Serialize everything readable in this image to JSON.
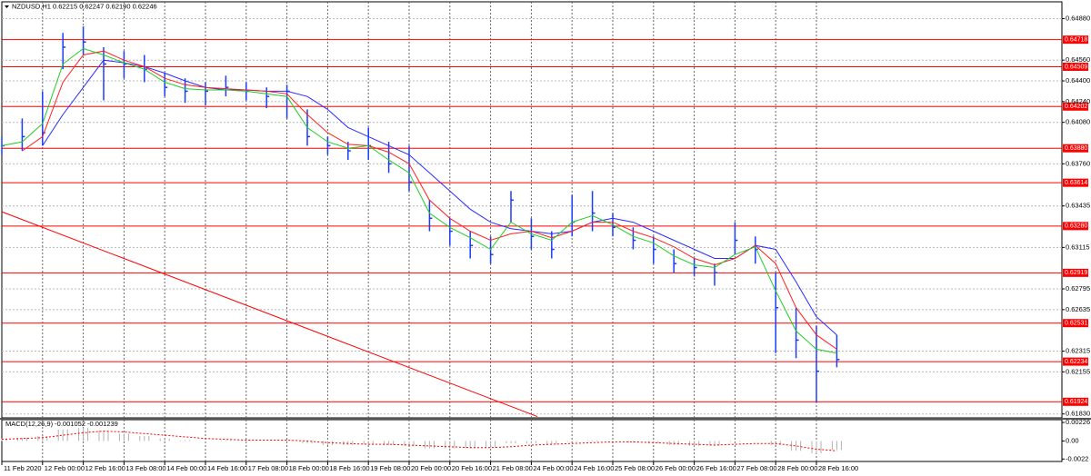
{
  "chart_data": [
    {
      "type": "ohlc",
      "title": "NZDUSD,H1  0.62215 0.62247 0.62190 0.62246",
      "categories": [
        "11 Feb 2020",
        "12 Feb 00:00",
        "12 Feb 16:00",
        "13 Feb 08:00",
        "14 Feb 00:00",
        "14 Feb 16:00",
        "17 Feb 08:00",
        "18 Feb 00:00",
        "18 Feb 16:00",
        "19 Feb 08:00",
        "20 Feb 00:00",
        "20 Feb 16:00",
        "21 Feb 08:00",
        "24 Feb 00:00",
        "24 Feb 16:00",
        "25 Feb 08:00",
        "26 Feb 00:00",
        "26 Feb 16:00",
        "27 Feb 08:00",
        "28 Feb 00:00",
        "28 Feb 16:00"
      ],
      "price": {
        "color": "#1a3cff",
        "high": [
          0.6397,
          0.6411,
          0.6432,
          0.6477,
          0.6482,
          0.6466,
          0.6463,
          0.646,
          0.6446,
          0.6442,
          0.6439,
          0.6444,
          0.6439,
          0.6435,
          0.6437,
          0.6418,
          0.6397,
          0.6393,
          0.6404,
          0.6393,
          0.639,
          0.6348,
          0.6334,
          0.6324,
          0.632,
          0.6355,
          0.6334,
          0.6324,
          0.6352,
          0.6355,
          0.6338,
          0.6327,
          0.632,
          0.631,
          0.6303,
          0.6299,
          0.6331,
          0.632,
          0.6292,
          0.6265,
          0.6251,
          0.6244
        ],
        "low": [
          0.6383,
          0.6386,
          0.639,
          0.6449,
          0.646,
          0.6425,
          0.6442,
          0.6439,
          0.6428,
          0.6423,
          0.6421,
          0.6428,
          0.6425,
          0.6419,
          0.6411,
          0.639,
          0.6383,
          0.6379,
          0.6379,
          0.6369,
          0.6355,
          0.6324,
          0.6313,
          0.6303,
          0.6299,
          0.6331,
          0.631,
          0.6303,
          0.632,
          0.6324,
          0.632,
          0.631,
          0.6299,
          0.6292,
          0.6289,
          0.6282,
          0.6306,
          0.6299,
          0.623,
          0.6226,
          0.6192,
          0.6219
        ],
        "close": [
          0.639,
          0.6397,
          0.64,
          0.6466,
          0.647,
          0.6453,
          0.6453,
          0.6449,
          0.6435,
          0.6432,
          0.6432,
          0.6435,
          0.6432,
          0.6428,
          0.6432,
          0.6397,
          0.639,
          0.6386,
          0.639,
          0.6376,
          0.6362,
          0.6334,
          0.6324,
          0.6313,
          0.6306,
          0.6348,
          0.632,
          0.631,
          0.6331,
          0.6338,
          0.6327,
          0.6317,
          0.631,
          0.6299,
          0.6296,
          0.6292,
          0.6317,
          0.631,
          0.6265,
          0.624,
          0.6216,
          0.6225
        ]
      },
      "moving_averages": [
        {
          "color": "#2b2bff",
          "values": [
            null,
            null,
            0.639,
            0.6414,
            0.6435,
            0.6456,
            0.6454,
            0.6451,
            0.6446,
            0.644,
            0.6435,
            0.6433,
            0.6433,
            0.6432,
            0.6432,
            0.6428,
            0.6418,
            0.6404,
            0.6397,
            0.639,
            0.6383,
            0.6369,
            0.6355,
            0.6341,
            0.6331,
            0.6326,
            0.6324,
            0.6322,
            0.6324,
            0.6331,
            0.6334,
            0.6331,
            0.6324,
            0.6317,
            0.631,
            0.6303,
            0.6303,
            0.6313,
            0.631,
            0.6285,
            0.6258,
            0.6244
          ]
        },
        {
          "color": "#ff2020",
          "values": [
            null,
            0.6386,
            0.6397,
            0.6439,
            0.646,
            0.6463,
            0.6456,
            0.6451,
            0.6442,
            0.6437,
            0.6435,
            0.6434,
            0.6433,
            0.6432,
            0.643,
            0.6414,
            0.64,
            0.6391,
            0.639,
            0.6385,
            0.6376,
            0.6348,
            0.6334,
            0.6324,
            0.6317,
            0.6322,
            0.6324,
            0.6319,
            0.6324,
            0.6331,
            0.6331,
            0.6324,
            0.6319,
            0.6312,
            0.6303,
            0.6298,
            0.6303,
            0.6313,
            0.6299,
            0.6265,
            0.6244,
            0.6233
          ]
        },
        {
          "color": "#22cc22",
          "values": [
            0.639,
            0.6393,
            0.6407,
            0.6453,
            0.6465,
            0.646,
            0.6454,
            0.6449,
            0.6439,
            0.6434,
            0.6433,
            0.6433,
            0.6432,
            0.643,
            0.6428,
            0.6404,
            0.6393,
            0.6388,
            0.639,
            0.6379,
            0.6369,
            0.6338,
            0.6327,
            0.6319,
            0.631,
            0.6331,
            0.6322,
            0.6317,
            0.6331,
            0.6336,
            0.6329,
            0.632,
            0.6315,
            0.6305,
            0.6298,
            0.6296,
            0.6306,
            0.6312,
            0.6278,
            0.6247,
            0.6233,
            0.623
          ]
        }
      ],
      "levels": {
        "color": "#ff0000",
        "values": [
          0.64718,
          0.64509,
          0.64202,
          {
            "value": 0.6388,
            "label": "0.63880"
          },
          0.63614,
          {
            "value": 0.6328,
            "label": "0.63280"
          },
          0.62919,
          0.62531,
          0.62234,
          0.61924
        ]
      },
      "trendline": {
        "color": "#ff0000",
        "x": [
          0,
          26.3
        ],
        "values": [
          0.6339,
          0.6181
        ]
      },
      "ylim": [
        0.618,
        0.6501
      ],
      "yticks": [
        {
          "value": 0.6488,
          "label": "0.64880"
        },
        {
          "value": 0.6456,
          "label": "0.64560"
        },
        {
          "value": 0.644,
          "label": "0.64400"
        },
        {
          "value": 0.6424,
          "label": "0.64240"
        },
        {
          "value": 0.6408,
          "label": "0.64080"
        },
        {
          "value": 0.6376,
          "label": "0.63760"
        },
        0.63435,
        0.63115,
        0.62795,
        0.62635,
        0.62315,
        0.62155,
        {
          "value": 0.6183,
          "label": "0.61830"
        }
      ],
      "grid": true
    },
    {
      "type": "macd",
      "title": "MACD(12,26,9) -0.001052 -0.001239",
      "histogram": {
        "color": "#b0b0b0",
        "values": [
          0.0003,
          0.0004,
          0.0006,
          0.0014,
          0.0016,
          0.0013,
          0.0009,
          0.0006,
          0.0003,
          0.0001,
          0,
          0.0001,
          0.0001,
          0,
          0.0001,
          -0.0003,
          -0.0005,
          -0.0005,
          -0.0004,
          -0.0005,
          -0.0006,
          -0.0009,
          -0.0009,
          -0.0009,
          -0.0008,
          -0.0003,
          -0.0003,
          -0.0004,
          -0.0001,
          0.0001,
          0,
          -0.0002,
          -0.0003,
          -0.0005,
          -0.0006,
          -0.0006,
          -0.0001,
          0,
          -0.0005,
          -0.0012,
          -0.0015,
          -0.0011
        ]
      },
      "signal": {
        "color": "#ff0000",
        "values": [
          0.0002,
          0.0003,
          0.0004,
          0.0007,
          0.001,
          0.0012,
          0.0011,
          0.0009,
          0.0007,
          0.0005,
          0.0003,
          0.0002,
          0.0001,
          0.0001,
          0.0001,
          0,
          -0.0002,
          -0.0003,
          -0.0004,
          -0.0004,
          -0.0005,
          -0.0006,
          -0.0007,
          -0.0008,
          -0.0008,
          -0.0007,
          -0.0005,
          -0.0004,
          -0.0003,
          -0.0002,
          -0.0001,
          -0.0001,
          -0.0002,
          -0.0003,
          -0.0004,
          -0.0005,
          -0.0004,
          -0.0003,
          -0.0003,
          -0.0006,
          -0.001,
          -0.0012
        ]
      },
      "ylim": [
        -0.0025,
        0.0026
      ],
      "yticks": [
        0.00226,
        {
          "value": 0,
          "label": "0.00"
        },
        -0.0022
      ]
    }
  ]
}
